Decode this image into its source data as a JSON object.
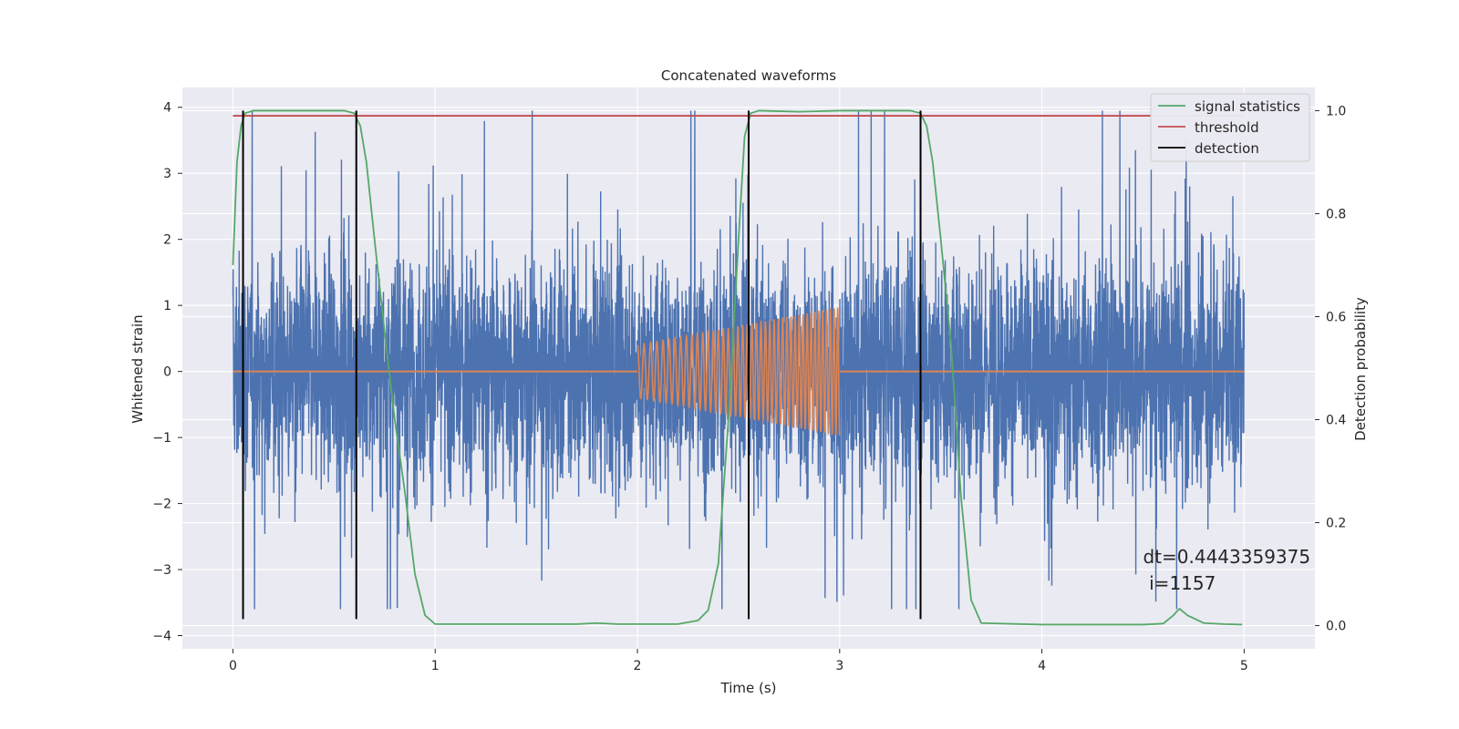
{
  "chart_data": {
    "type": "line",
    "title": "Concatenated waveforms",
    "xlabel": "Time (s)",
    "ylabel": "Whitened strain",
    "y2label": "Detection probability",
    "xlim": [
      -0.25,
      5.35
    ],
    "ylim": [
      -4.2,
      4.3
    ],
    "y2lim": [
      -0.045,
      1.045
    ],
    "xticks": [
      0,
      1,
      2,
      3,
      4,
      5
    ],
    "xtick_labels": [
      "0",
      "1",
      "2",
      "3",
      "4",
      "5"
    ],
    "yticks": [
      -4,
      -3,
      -2,
      -1,
      0,
      1,
      2,
      3,
      4
    ],
    "ytick_labels": [
      "−4",
      "−3",
      "−2",
      "−1",
      "0",
      "1",
      "2",
      "3",
      "4"
    ],
    "y2ticks": [
      0,
      0.2,
      0.4,
      0.6,
      0.8,
      1.0
    ],
    "y2tick_labels": [
      "0.0",
      "0.2",
      "0.4",
      "0.6",
      "0.8",
      "1.0"
    ],
    "grid": true,
    "legend_position": "top-right",
    "colors": {
      "noise": "#4c72b0",
      "injected_signal": "#dd8452",
      "signal_statistics": "#55a868",
      "threshold": "#c44e52",
      "detection": "#000000",
      "axes_background": "#eaeaf2",
      "grid": "#ffffff"
    },
    "series": [
      {
        "name": "signal statistics",
        "axis": "right",
        "x": [
          0,
          0.02,
          0.04,
          0.06,
          0.1,
          0.2,
          0.4,
          0.55,
          0.6,
          0.63,
          0.66,
          0.7,
          0.75,
          0.8,
          0.85,
          0.9,
          0.95,
          1.0,
          1.5,
          1.7,
          1.8,
          1.9,
          2.0,
          2.2,
          2.3,
          2.35,
          2.4,
          2.45,
          2.5,
          2.53,
          2.56,
          2.6,
          2.8,
          3.0,
          3.2,
          3.35,
          3.4,
          3.43,
          3.46,
          3.5,
          3.55,
          3.6,
          3.65,
          3.7,
          4.0,
          4.5,
          4.6,
          4.65,
          4.68,
          4.72,
          4.8,
          4.9,
          4.99
        ],
        "values": [
          0.7,
          0.9,
          0.97,
          0.995,
          1.0,
          1.0,
          1.0,
          1.0,
          0.995,
          0.97,
          0.9,
          0.75,
          0.57,
          0.4,
          0.26,
          0.1,
          0.02,
          0.003,
          0.003,
          0.003,
          0.005,
          0.003,
          0.003,
          0.003,
          0.01,
          0.03,
          0.12,
          0.4,
          0.75,
          0.95,
          0.995,
          1.0,
          0.998,
          1.0,
          1.0,
          1.0,
          0.995,
          0.97,
          0.9,
          0.75,
          0.55,
          0.25,
          0.05,
          0.005,
          0.002,
          0.002,
          0.004,
          0.02,
          0.033,
          0.02,
          0.005,
          0.003,
          0.002
        ]
      },
      {
        "name": "threshold",
        "axis": "right",
        "x": [
          0,
          5
        ],
        "values": [
          0.99,
          0.99
        ]
      },
      {
        "name": "detection",
        "axis": "left",
        "x": [
          0.05,
          0.61,
          2.55,
          3.4
        ],
        "ymin": -3.75,
        "ymax": 3.95
      },
      {
        "axis": "left",
        "x_start": 0,
        "x_end": 5,
        "amplitude_envelope": 1.2,
        "peak_range": [
          -3.6,
          3.95
        ]
      },
      {
        "axis": "left",
        "x_start": 2,
        "x_end": 3,
        "amplitude_start": 0.4,
        "amplitude_end": 0.97,
        "frequency_start": 30,
        "frequency_end": 55,
        "baseline": 0
      }
    ],
    "annotations": [
      {
        "text": "dt=0.4443359375",
        "x": 4.5,
        "y": -2.9
      },
      {
        "text": "i=1157",
        "x": 4.53,
        "y": -3.3
      }
    ]
  }
}
